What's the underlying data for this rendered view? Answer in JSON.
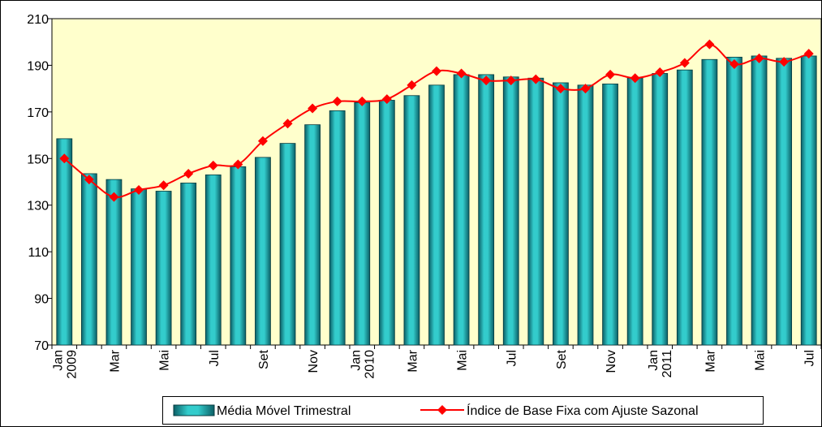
{
  "chart_data": {
    "type": "bar_line",
    "categories": [
      "Jan",
      null,
      "Mar",
      null,
      "Mai",
      null,
      "Jul",
      null,
      "Set",
      null,
      "Nov",
      null,
      "Jan",
      null,
      "Mar",
      null,
      "Mai",
      null,
      "Jul",
      null,
      "Set",
      null,
      "Nov",
      null,
      "Jan",
      null,
      "Mar",
      null,
      "Mai",
      null,
      "Jul"
    ],
    "x_sublabels": [
      "2009",
      null,
      null,
      null,
      null,
      null,
      null,
      null,
      null,
      null,
      null,
      null,
      "2010",
      null,
      null,
      null,
      null,
      null,
      null,
      null,
      null,
      null,
      null,
      null,
      "2011",
      null,
      null,
      null,
      null,
      null,
      null
    ],
    "series": [
      {
        "name": "Média Móvel Trimestral",
        "type": "bar",
        "color": "#33cccc",
        "values": [
          158.5,
          143.5,
          141,
          137,
          136,
          139.5,
          143,
          146.5,
          150.5,
          156.5,
          164.5,
          170.5,
          174,
          175,
          177,
          181.5,
          186,
          186,
          185,
          184.5,
          182.5,
          181.5,
          182,
          184.5,
          186.5,
          188,
          192.5,
          193.5,
          194,
          193,
          194
        ]
      },
      {
        "name": "Índice de Base Fixa com Ajuste Sazonal",
        "type": "line",
        "color": "#ff0000",
        "values": [
          150,
          141,
          133.5,
          136.5,
          138.5,
          143.5,
          147,
          147.5,
          157.5,
          165,
          171.5,
          174.5,
          174.5,
          175.5,
          181.5,
          187.5,
          186.5,
          183.5,
          183.5,
          184,
          180,
          180,
          186,
          184.5,
          187,
          191,
          199,
          190.5,
          193,
          191.5,
          195
        ]
      }
    ],
    "ylim": [
      70,
      210
    ],
    "yticks": [
      70,
      90,
      110,
      130,
      150,
      170,
      190,
      210
    ],
    "plot_background": "#ffffcc"
  }
}
